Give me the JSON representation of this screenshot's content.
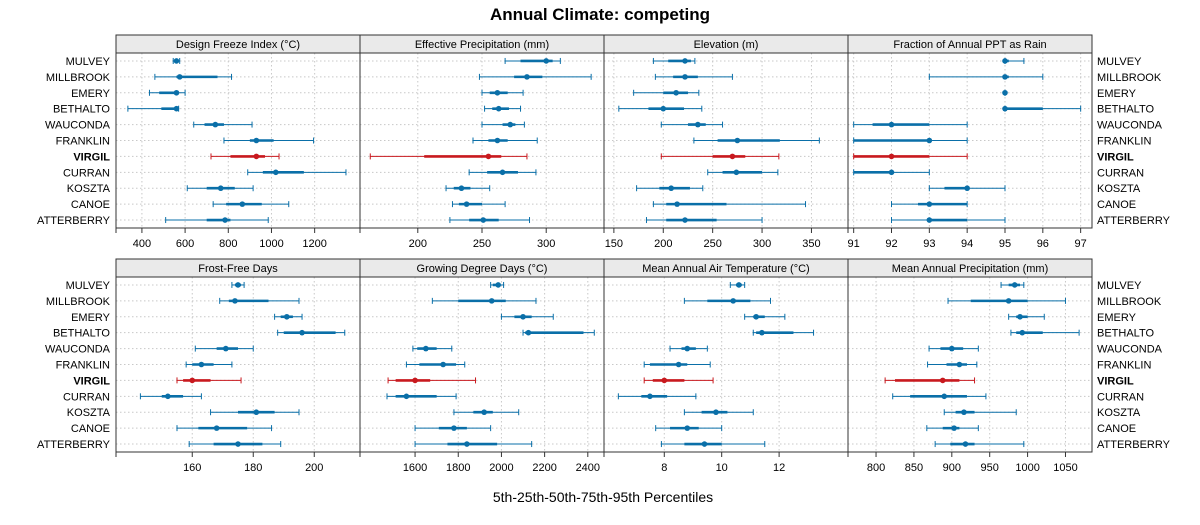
{
  "title": "Annual Climate: competing",
  "xlabel": "5th-25th-50th-75th-95th Percentiles",
  "colors": {
    "normal": "#0a6fa8",
    "highlight": "#c8191e",
    "strip_bg": "#eaeaea",
    "grid": "#c8c8c8"
  },
  "sites": [
    "MULVEY",
    "MILLBROOK",
    "EMERY",
    "BETHALTO",
    "WAUCONDA",
    "FRANKLIN",
    "VIRGIL",
    "CURRAN",
    "KOSZTA",
    "CANOE",
    "ATTERBERRY"
  ],
  "highlight_site": "VIRGIL",
  "chart_data": [
    {
      "type": "interval",
      "title": "Design Freeze Index (°C)",
      "xlim": [
        280,
        1410
      ],
      "ticks": [
        400,
        600,
        800,
        1000,
        1200
      ],
      "tick_labels": [
        "400",
        "600",
        "800",
        "1000",
        "1200"
      ],
      "percentiles": [
        [
          545,
          550,
          560,
          568,
          575
        ],
        [
          460,
          560,
          575,
          750,
          815
        ],
        [
          435,
          480,
          560,
          570,
          600
        ],
        [
          335,
          490,
          560,
          565,
          570
        ],
        [
          640,
          690,
          740,
          780,
          910
        ],
        [
          780,
          900,
          930,
          1010,
          1195
        ],
        [
          720,
          810,
          930,
          970,
          1035
        ],
        [
          890,
          960,
          1020,
          1150,
          1345
        ],
        [
          610,
          700,
          765,
          830,
          915
        ],
        [
          730,
          790,
          865,
          955,
          1080
        ],
        [
          510,
          700,
          785,
          810,
          985
        ]
      ]
    },
    {
      "type": "interval",
      "title": "Effective Precipitation (mm)",
      "xlim": [
        155,
        345
      ],
      "ticks": [
        200,
        250,
        300
      ],
      "tick_labels": [
        "200",
        "250",
        "300"
      ],
      "percentiles": [
        [
          268,
          280,
          300,
          305,
          311
        ],
        [
          248,
          275,
          285,
          297,
          335
        ],
        [
          250,
          256,
          262,
          270,
          282
        ],
        [
          252,
          258,
          263,
          271,
          280
        ],
        [
          250,
          266,
          272,
          276,
          283
        ],
        [
          243,
          255,
          262,
          270,
          293
        ],
        [
          163,
          205,
          255,
          265,
          285
        ],
        [
          240,
          254,
          266,
          278,
          292
        ],
        [
          222,
          228,
          234,
          241,
          256
        ],
        [
          227,
          232,
          238,
          250,
          268
        ],
        [
          225,
          240,
          251,
          263,
          287
        ]
      ]
    },
    {
      "type": "interval",
      "title": "Elevation (m)",
      "xlim": [
        140,
        387
      ],
      "ticks": [
        150,
        200,
        250,
        300,
        350
      ],
      "tick_labels": [
        "150",
        "200",
        "250",
        "300",
        "350"
      ],
      "percentiles": [
        [
          190,
          205,
          222,
          228,
          232
        ],
        [
          192,
          210,
          222,
          235,
          270
        ],
        [
          170,
          200,
          213,
          225,
          236
        ],
        [
          155,
          185,
          200,
          221,
          239
        ],
        [
          198,
          225,
          235,
          243,
          260
        ],
        [
          231,
          255,
          275,
          318,
          358
        ],
        [
          198,
          250,
          270,
          283,
          317
        ],
        [
          245,
          260,
          274,
          300,
          316
        ],
        [
          173,
          196,
          208,
          227,
          240
        ],
        [
          190,
          203,
          214,
          264,
          344
        ],
        [
          183,
          203,
          222,
          254,
          300
        ]
      ]
    },
    {
      "type": "interval",
      "title": "Fraction of Annual PPT as Rain",
      "xlim": [
        90.85,
        97.3
      ],
      "ticks": [
        91,
        92,
        93,
        94,
        95,
        96,
        97
      ],
      "tick_labels": [
        "91",
        "92",
        "93",
        "94",
        "95",
        "96",
        "97"
      ],
      "percentiles": [
        [
          95,
          95,
          95,
          95.1,
          95.5
        ],
        [
          93,
          95,
          95,
          95.1,
          96
        ],
        [
          95,
          95,
          95,
          95,
          95
        ],
        [
          95,
          95,
          95,
          96,
          97
        ],
        [
          91,
          91.5,
          92,
          93,
          94
        ],
        [
          91,
          91,
          93,
          93,
          94
        ],
        [
          91,
          91,
          92,
          93,
          94
        ],
        [
          91,
          91,
          92,
          92,
          93
        ],
        [
          93,
          93.4,
          94,
          94,
          95
        ],
        [
          92,
          92.7,
          93,
          94,
          94
        ],
        [
          92,
          93,
          93,
          94,
          95
        ]
      ]
    },
    {
      "type": "interval",
      "title": "Frost-Free Days",
      "xlim": [
        135,
        215
      ],
      "ticks": [
        160,
        180,
        200
      ],
      "tick_labels": [
        "160",
        "180",
        "200"
      ],
      "percentiles": [
        [
          173,
          174,
          175,
          176,
          177
        ],
        [
          169,
          172,
          174,
          185,
          195
        ],
        [
          187,
          189,
          191,
          193,
          196
        ],
        [
          188,
          190,
          196,
          207,
          210
        ],
        [
          161,
          168,
          171,
          175,
          180
        ],
        [
          158,
          160,
          163,
          167,
          173
        ],
        [
          155,
          157,
          160,
          166,
          176
        ],
        [
          143,
          150,
          152,
          157,
          163
        ],
        [
          166,
          175,
          181,
          187,
          195
        ],
        [
          155,
          162,
          168,
          178,
          186
        ],
        [
          159,
          167,
          175,
          183,
          189
        ]
      ]
    },
    {
      "type": "interval",
      "title": "Growing Degree Days (°C)",
      "xlim": [
        1345,
        2475
      ],
      "ticks": [
        1600,
        1800,
        2000,
        2200,
        2400
      ],
      "tick_labels": [
        "1600",
        "1800",
        "2000",
        "2200",
        "2400"
      ],
      "percentiles": [
        [
          1950,
          1960,
          1985,
          1995,
          2010
        ],
        [
          1680,
          1800,
          1955,
          2020,
          2160
        ],
        [
          2000,
          2060,
          2100,
          2140,
          2240
        ],
        [
          2100,
          2110,
          2125,
          2380,
          2430
        ],
        [
          1590,
          1610,
          1650,
          1700,
          1770
        ],
        [
          1560,
          1620,
          1730,
          1790,
          1830
        ],
        [
          1475,
          1510,
          1600,
          1670,
          1880
        ],
        [
          1470,
          1510,
          1560,
          1700,
          1790
        ],
        [
          1780,
          1870,
          1920,
          1960,
          2080
        ],
        [
          1600,
          1710,
          1780,
          1840,
          1950
        ],
        [
          1600,
          1750,
          1840,
          1980,
          2140
        ]
      ]
    },
    {
      "type": "interval",
      "title": "Mean Annual Air Temperature (°C)",
      "xlim": [
        5.9,
        14.4
      ],
      "ticks": [
        8,
        10,
        12
      ],
      "tick_labels": [
        "8",
        "10",
        "12"
      ],
      "percentiles": [
        [
          10.3,
          10.5,
          10.6,
          10.7,
          10.8
        ],
        [
          8.7,
          9.5,
          10.4,
          11.0,
          11.7
        ],
        [
          10.8,
          11.1,
          11.2,
          11.5,
          12.2
        ],
        [
          11.1,
          11.2,
          11.4,
          12.5,
          13.2
        ],
        [
          8.2,
          8.6,
          8.8,
          9.1,
          9.5
        ],
        [
          7.3,
          7.5,
          8.5,
          8.8,
          9.6
        ],
        [
          7.3,
          7.6,
          8.0,
          8.7,
          9.7
        ],
        [
          6.4,
          7.2,
          7.5,
          8.1,
          9.1
        ],
        [
          8.7,
          9.3,
          9.8,
          10.2,
          11.1
        ],
        [
          7.7,
          8.2,
          8.8,
          9.2,
          10.0
        ],
        [
          7.9,
          8.7,
          9.4,
          10.0,
          11.5
        ]
      ]
    },
    {
      "type": "interval",
      "title": "Mean Annual Precipitation (mm)",
      "xlim": [
        763,
        1085
      ],
      "ticks": [
        800,
        850,
        900,
        950,
        1000,
        1050
      ],
      "tick_labels": [
        "800",
        "850",
        "900",
        "950",
        "1000",
        "1050"
      ],
      "percentiles": [
        [
          965,
          975,
          983,
          990,
          995
        ],
        [
          895,
          925,
          975,
          1000,
          1050
        ],
        [
          975,
          985,
          990,
          1000,
          1022
        ],
        [
          978,
          985,
          993,
          1020,
          1068
        ],
        [
          870,
          885,
          900,
          915,
          935
        ],
        [
          868,
          893,
          910,
          920,
          933
        ],
        [
          812,
          825,
          888,
          910,
          930
        ],
        [
          822,
          845,
          890,
          920,
          945
        ],
        [
          890,
          905,
          916,
          930,
          985
        ],
        [
          867,
          888,
          903,
          910,
          935
        ],
        [
          878,
          898,
          918,
          930,
          995
        ]
      ]
    }
  ]
}
